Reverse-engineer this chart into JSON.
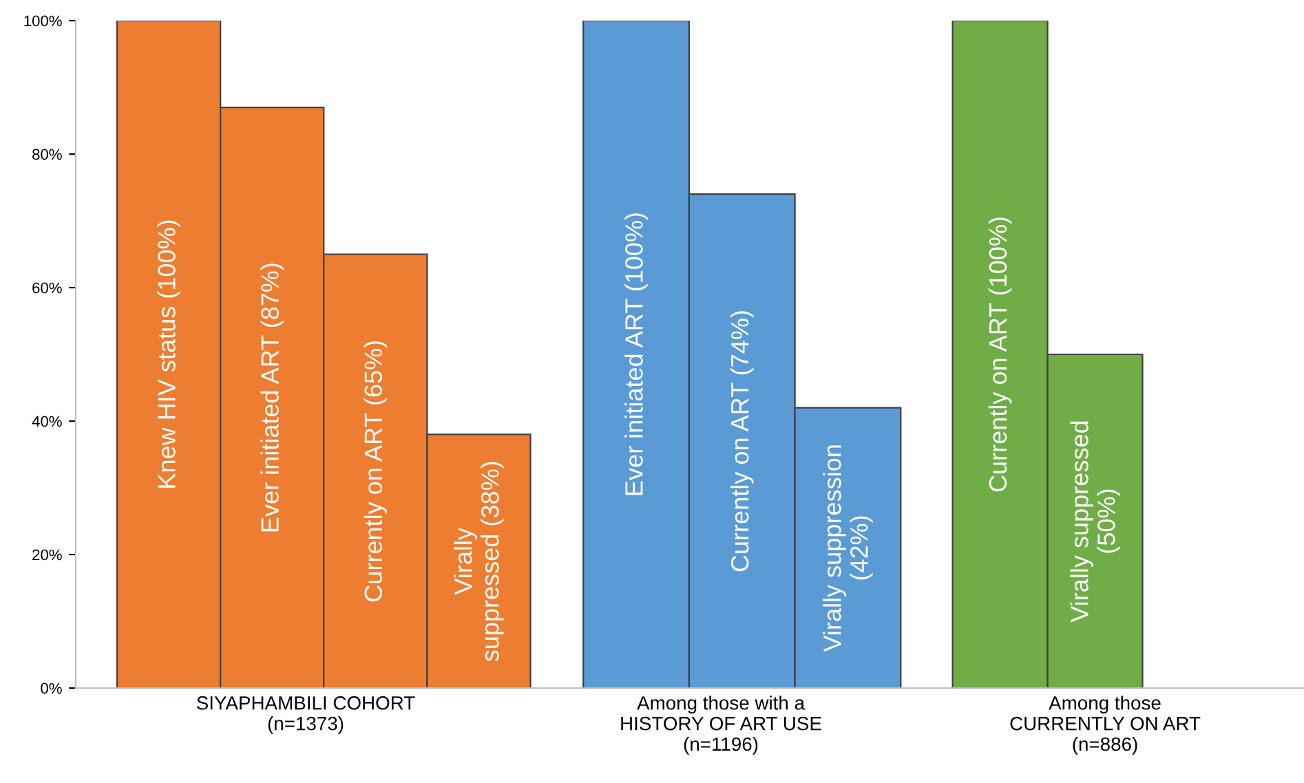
{
  "chart_data": [
    {
      "type": "bar",
      "categories": [
        null,
        null,
        null,
        null
      ],
      "values": [
        100,
        87,
        65,
        38
      ],
      "colors": [
        "#ed7d31",
        "#ed7d31",
        "#ed7d31",
        "#ed7d31"
      ],
      "value_labels": [
        "Knew HIV status (100%)",
        "Ever initiated ART (87%)",
        "Currently on ART (65%)",
        "Virally\nsuppressed (38%)"
      ],
      "xlabel": "SIYAPHAMBILI COHORT\n(n=1373)",
      "ylim": [
        0,
        100
      ],
      "yticks": [
        {
          "value": 0,
          "label": "0%"
        },
        {
          "value": 20,
          "label": "20%"
        },
        {
          "value": 40,
          "label": "40%"
        },
        {
          "value": 60,
          "label": "60%"
        },
        {
          "value": 80,
          "label": "80%"
        },
        {
          "value": 100,
          "label": "100%"
        }
      ],
      "tick_labels": "y"
    },
    {
      "type": "bar",
      "categories": [
        null,
        null,
        null
      ],
      "values": [
        100,
        74,
        42
      ],
      "colors": [
        "#5b9bd5",
        "#5b9bd5",
        "#5b9bd5"
      ],
      "value_labels": [
        "Ever initiated ART (100%)",
        "Currently on ART (74%)",
        "Virally suppression\n(42%)"
      ],
      "xlabel": "Among those with a\nHISTORY OF ART USE\n(n=1196)",
      "ylim": [
        0,
        100
      ],
      "tick_labels": false
    },
    {
      "type": "bar",
      "categories": [
        null,
        null
      ],
      "values": [
        100,
        50
      ],
      "colors": [
        "#70ad47",
        "#70ad47"
      ],
      "value_labels": [
        "Currently on ART (100%)",
        "Virally suppressed\n(50%)"
      ],
      "xlabel": "Among those\nCURRENTLY ON ART\n(n=886)",
      "ylim": [
        0,
        100
      ],
      "tick_labels": false
    }
  ]
}
